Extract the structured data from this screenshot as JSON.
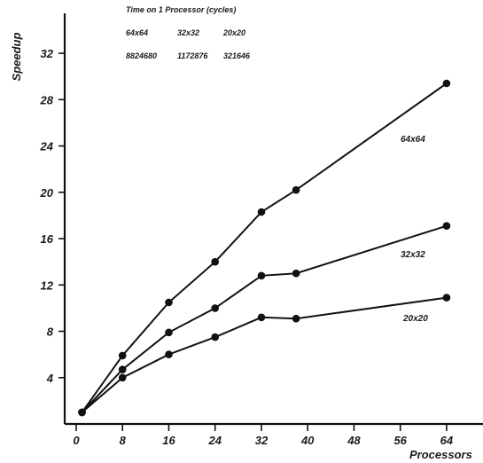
{
  "chart_data": {
    "type": "line",
    "title": "",
    "xlabel": "Processors",
    "ylabel": "Speedup",
    "x_ticks": [
      "0",
      "8",
      "16",
      "24",
      "32",
      "40",
      "48",
      "56",
      "64"
    ],
    "y_ticks": [
      "4",
      "8",
      "12",
      "16",
      "20",
      "24",
      "28",
      "32"
    ],
    "xlim": [
      0,
      64
    ],
    "ylim": [
      0,
      34
    ],
    "grid": false,
    "legend": "none",
    "series": [
      {
        "name": "64x64",
        "x": [
          1,
          8,
          16,
          24,
          32,
          38,
          64
        ],
        "y": [
          1,
          5.9,
          10.5,
          14.0,
          18.3,
          20.2,
          29.4
        ]
      },
      {
        "name": "32x32",
        "x": [
          1,
          8,
          16,
          24,
          32,
          38,
          64
        ],
        "y": [
          1,
          4.7,
          7.9,
          10.0,
          12.8,
          13.0,
          17.1
        ]
      },
      {
        "name": "20x20",
        "x": [
          1,
          8,
          16,
          24,
          32,
          38,
          64
        ],
        "y": [
          1,
          4.0,
          6.0,
          7.5,
          9.2,
          9.1,
          10.9
        ]
      }
    ],
    "info_box": {
      "heading": "Time on 1 Processor (cycles)",
      "sizes": [
        "64x64",
        "32x32",
        "20x20"
      ],
      "cycles": [
        "8824680",
        "1172876",
        "321646"
      ]
    }
  }
}
